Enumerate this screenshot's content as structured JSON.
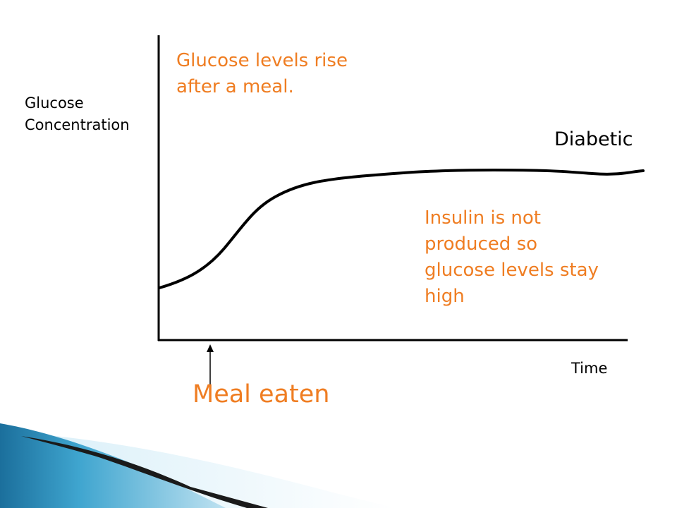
{
  "diagram": {
    "y_axis_label_line1": "Glucose",
    "y_axis_label_line2": "Concentration",
    "x_axis_label": "Time",
    "curve_label": "Diabetic",
    "note_top_line1": "Glucose levels rise",
    "note_top_line2": "after a meal.",
    "note_right_line1": "Insulin is not",
    "note_right_line2": "produced so",
    "note_right_line3": "glucose levels stay",
    "note_right_line4": "high",
    "marker_label": "Meal eaten"
  },
  "colors": {
    "annotation": "#ef7d22",
    "line": "#000000",
    "decor_blue": "#2f8fc0"
  }
}
